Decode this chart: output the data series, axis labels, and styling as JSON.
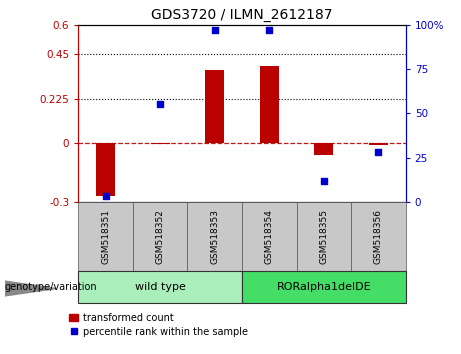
{
  "title": "GDS3720 / ILMN_2612187",
  "samples": [
    "GSM518351",
    "GSM518352",
    "GSM518353",
    "GSM518354",
    "GSM518355",
    "GSM518356"
  ],
  "bar_values": [
    -0.27,
    -0.005,
    0.37,
    0.39,
    -0.06,
    -0.01
  ],
  "dot_values": [
    3,
    55,
    97,
    97,
    12,
    28
  ],
  "bar_color": "#BB0000",
  "dot_color": "#0000CC",
  "ylim_left": [
    -0.3,
    0.6
  ],
  "ylim_right": [
    0,
    100
  ],
  "yticks_left": [
    -0.3,
    0,
    0.225,
    0.45,
    0.6
  ],
  "yticks_right": [
    0,
    25,
    50,
    75,
    100
  ],
  "ytick_labels_left": [
    "-0.3",
    "0",
    "0.225",
    "0.45",
    "0.6"
  ],
  "ytick_labels_right": [
    "0",
    "25",
    "50",
    "75",
    "100%"
  ],
  "hlines": [
    0.225,
    0.45
  ],
  "hline_zero": 0,
  "genotype_groups": [
    {
      "label": "wild type",
      "start": 0,
      "end": 3,
      "color": "#AAEEBB"
    },
    {
      "label": "RORalpha1delDE",
      "start": 3,
      "end": 6,
      "color": "#44DD66"
    }
  ],
  "genotype_label": "genotype/variation",
  "legend_bar_label": "transformed count",
  "legend_dot_label": "percentile rank within the sample",
  "bar_width": 0.35,
  "figsize": [
    4.61,
    3.54
  ],
  "dpi": 100
}
